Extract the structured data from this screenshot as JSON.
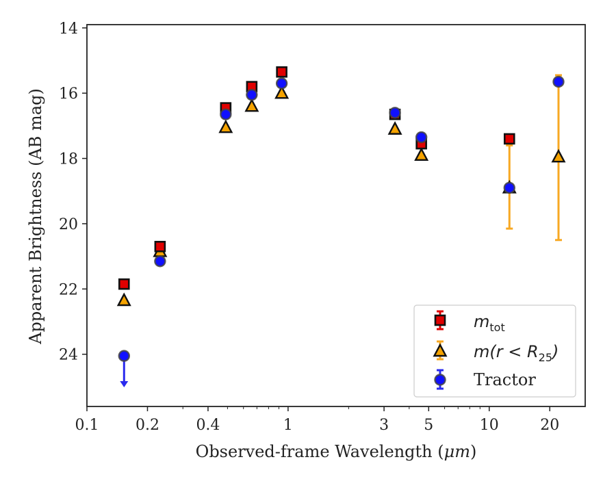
{
  "chart_data": {
    "type": "scatter",
    "xlabel_main": "Observed-frame Wavelength (",
    "xlabel_unit": "μm",
    "xlabel_end": ")",
    "ylabel": "Apparent Brightness (AB mag)",
    "xscale": "log",
    "xlim": [
      0.1,
      30
    ],
    "ylim": [
      25.6,
      13.9
    ],
    "y_inverted": true,
    "xticks": [
      0.1,
      0.2,
      0.4,
      1,
      3,
      5,
      10,
      20
    ],
    "xtick_labels": [
      "0.1",
      "0.2",
      "0.4",
      "1",
      "3",
      "5",
      "10",
      "20"
    ],
    "yticks": [
      14,
      16,
      18,
      20,
      22,
      24
    ],
    "ytick_labels": [
      "14",
      "16",
      "18",
      "20",
      "22",
      "24"
    ],
    "grid": false,
    "legend_position": "bottom-right",
    "series": [
      {
        "key": "mtot",
        "label_math": "m",
        "label_sub": "tot",
        "marker": "square",
        "color": "#e00000",
        "edge": "#111111",
        "points": [
          {
            "x": 0.153,
            "y": 21.85
          },
          {
            "x": 0.231,
            "y": 20.7
          },
          {
            "x": 0.49,
            "y": 16.45
          },
          {
            "x": 0.66,
            "y": 15.8
          },
          {
            "x": 0.93,
            "y": 15.35
          },
          {
            "x": 3.4,
            "y": 16.65
          },
          {
            "x": 4.6,
            "y": 17.55
          },
          {
            "x": 12.6,
            "y": 17.4
          }
        ]
      },
      {
        "key": "mr25",
        "label_math": "m(r < R",
        "label_sub": "25",
        "label_end": ")",
        "marker": "triangle",
        "color": "#f5a300",
        "edge": "#111111",
        "errcolor": "#f7a823",
        "points": [
          {
            "x": 0.153,
            "y": 22.35
          },
          {
            "x": 0.231,
            "y": 20.85
          },
          {
            "x": 0.49,
            "y": 17.05
          },
          {
            "x": 0.66,
            "y": 16.4
          },
          {
            "x": 0.93,
            "y": 16.0
          },
          {
            "x": 3.4,
            "y": 17.1
          },
          {
            "x": 4.6,
            "y": 17.9
          },
          {
            "x": 12.6,
            "y": 18.9,
            "err_lo": 17.6,
            "err_hi": 20.15
          },
          {
            "x": 22.1,
            "y": 17.95,
            "err_lo": 15.45,
            "err_hi": 20.5
          }
        ]
      },
      {
        "key": "tractor",
        "label": "Tractor",
        "marker": "circle",
        "color": "#1010ff",
        "edge": "#444444",
        "errcolor": "#2a2aee",
        "points": [
          {
            "x": 0.153,
            "y": 24.05,
            "upper_limit": true
          },
          {
            "x": 0.231,
            "y": 21.15
          },
          {
            "x": 0.49,
            "y": 16.65
          },
          {
            "x": 0.66,
            "y": 16.05
          },
          {
            "x": 0.93,
            "y": 15.7
          },
          {
            "x": 3.4,
            "y": 16.6
          },
          {
            "x": 4.6,
            "y": 17.35
          },
          {
            "x": 12.6,
            "y": 18.9
          },
          {
            "x": 22.1,
            "y": 15.65
          }
        ]
      }
    ]
  }
}
